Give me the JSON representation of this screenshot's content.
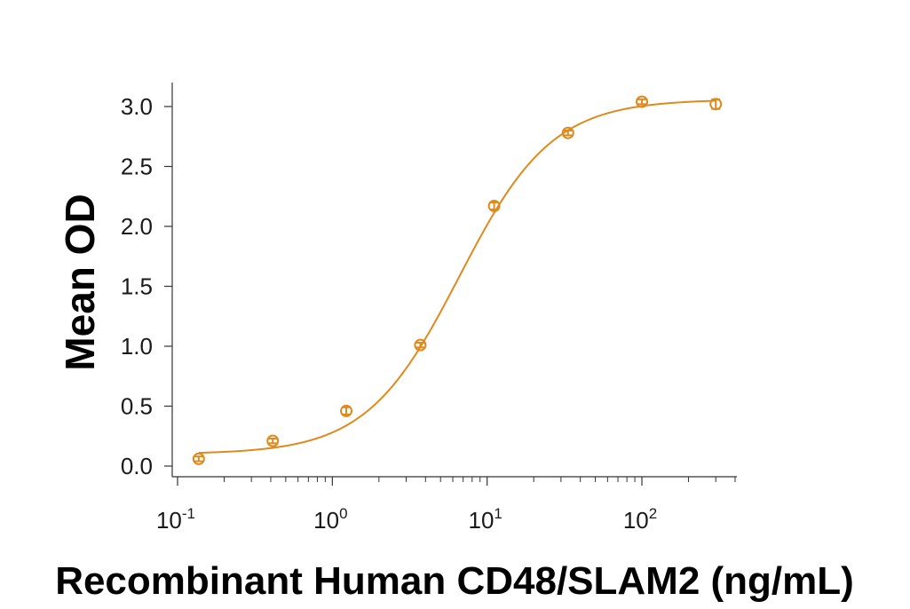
{
  "chart_data": {
    "type": "scatter",
    "title": "",
    "xlabel": "Recombinant Human CD48/SLAM2 (ng/mL)",
    "ylabel": "Mean OD",
    "x_scale": "log",
    "xlim": [
      0.1,
      400
    ],
    "ylim": [
      0,
      3.1
    ],
    "x_ticks": [
      {
        "value": 0.1,
        "base": "10",
        "exp": "-1"
      },
      {
        "value": 1,
        "base": "10",
        "exp": "0"
      },
      {
        "value": 10,
        "base": "10",
        "exp": "1"
      },
      {
        "value": 100,
        "base": "10",
        "exp": "2"
      }
    ],
    "y_ticks": [
      {
        "value": 0.0,
        "label": "0.0"
      },
      {
        "value": 0.5,
        "label": "0.5"
      },
      {
        "value": 1.0,
        "label": "1.0"
      },
      {
        "value": 1.5,
        "label": "1.5"
      },
      {
        "value": 2.0,
        "label": "2.0"
      },
      {
        "value": 2.5,
        "label": "2.5"
      },
      {
        "value": 3.0,
        "label": "3.0"
      }
    ],
    "grid": false,
    "legend": "none",
    "color": "#e08a1e",
    "series": [
      {
        "x": [
          0.137,
          0.412,
          1.23,
          3.7,
          11.1,
          33.3,
          100,
          300
        ],
        "y": [
          0.06,
          0.21,
          0.46,
          1.01,
          2.17,
          2.78,
          3.04,
          3.02
        ],
        "err": [
          0.02,
          0.02,
          0.03,
          0.02,
          0.03,
          0.02,
          0.02,
          0.04
        ]
      }
    ],
    "fit_curve": {
      "model": "4PL",
      "bottom": 0.1,
      "top": 3.06,
      "ec50": 6.6,
      "hill": 1.45
    }
  }
}
